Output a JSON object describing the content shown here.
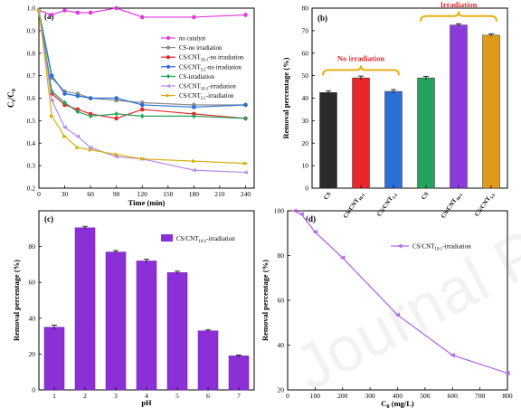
{
  "watermark": "Journal Pre-proof",
  "colors": {
    "no_catalyst": "#e03ad9",
    "cs": "#8c8c8c",
    "cnt10": "#e8262b",
    "cnt51": "#2a6fd6",
    "green": "#25a35c",
    "violet": "#b48be8",
    "gold": "#d9ae12",
    "bar_cs": "#2b2b2b",
    "bar_cnt10": "#e8262b",
    "bar_cnt51": "#2a6fd6",
    "bar_cs_irr": "#25a35c",
    "bar_cnt10_irr": "#8b3bdc",
    "bar_cnt51_irr": "#e09a1a",
    "brace": "#e8b012",
    "annot": "#e8262b",
    "purple": "#8b2fd6",
    "purple_line": "#b36ae8"
  },
  "chart_data": [
    {
      "panel": "(a)",
      "type": "line",
      "xlabel": "Time (min)",
      "ylabel": "Ct/C0",
      "xlim": [
        0,
        250
      ],
      "ylim": [
        0.2,
        1.0
      ],
      "xticks": [
        "0",
        "30",
        "60",
        "90",
        "120",
        "150",
        "180",
        "210",
        "240"
      ],
      "yticks": [
        "0.2",
        "0.3",
        "0.4",
        "0.5",
        "0.6",
        "0.7",
        "0.8",
        "0.9",
        "1.0"
      ],
      "legend": "top-right",
      "series": [
        {
          "name": "no catalyst",
          "color_key": "no_catalyst",
          "marker": "circle",
          "x": [
            0,
            15,
            30,
            45,
            60,
            90,
            120,
            180,
            240
          ],
          "y": [
            0.99,
            0.97,
            0.99,
            0.98,
            0.98,
            1.0,
            0.96,
            0.96,
            0.97
          ]
        },
        {
          "name": "CS-no irradiation",
          "color_key": "cs",
          "marker": "circle",
          "x": [
            0,
            15,
            30,
            45,
            60,
            90,
            120,
            180,
            240
          ],
          "y": [
            0.99,
            0.69,
            0.63,
            0.62,
            0.6,
            0.59,
            0.58,
            0.57,
            0.57
          ]
        },
        {
          "name": "CS/CNT10:1-no irradiation",
          "color_key": "cnt10",
          "marker": "circle",
          "x": [
            0,
            15,
            30,
            45,
            60,
            90,
            120,
            180,
            240
          ],
          "y": [
            0.99,
            0.62,
            0.57,
            0.55,
            0.53,
            0.51,
            0.55,
            0.53,
            0.51
          ]
        },
        {
          "name": "CS/CNT5:1-no irradiation",
          "color_key": "cnt51",
          "marker": "circle",
          "x": [
            0,
            15,
            30,
            45,
            60,
            90,
            120,
            180,
            240
          ],
          "y": [
            0.99,
            0.7,
            0.62,
            0.61,
            0.6,
            0.6,
            0.57,
            0.56,
            0.57
          ]
        },
        {
          "name": "CS-irradiation",
          "color_key": "green",
          "marker": "diamond",
          "x": [
            0,
            15,
            30,
            45,
            60,
            90,
            120,
            180,
            240
          ],
          "y": [
            0.99,
            0.63,
            0.58,
            0.54,
            0.52,
            0.53,
            0.52,
            0.52,
            0.51
          ]
        },
        {
          "name": "CS/CNT10:1-irradiation",
          "color_key": "violet",
          "marker": "triangle-left",
          "x": [
            0,
            15,
            30,
            45,
            60,
            90,
            120,
            180,
            240
          ],
          "y": [
            0.99,
            0.59,
            0.47,
            0.43,
            0.38,
            0.34,
            0.33,
            0.28,
            0.27
          ]
        },
        {
          "name": "CS/CNT5:1-irradiation",
          "color_key": "gold",
          "marker": "triangle-right",
          "x": [
            0,
            15,
            30,
            45,
            60,
            90,
            120,
            180,
            240
          ],
          "y": [
            0.99,
            0.52,
            0.43,
            0.38,
            0.37,
            0.35,
            0.33,
            0.32,
            0.31
          ]
        }
      ]
    },
    {
      "panel": "(b)",
      "type": "bar",
      "ylabel": "Removal percentage (%)",
      "ylim": [
        0,
        80
      ],
      "yticks": [
        "0",
        "10",
        "20",
        "30",
        "40",
        "50",
        "60",
        "70",
        "80"
      ],
      "categories": [
        "CS",
        "CS/CNT10:1",
        "CS/CNT5:1",
        "CS",
        "CS/CNT10:1",
        "CS/CNT5:1"
      ],
      "values": [
        42.5,
        49,
        43,
        49,
        72.5,
        68
      ],
      "errors": [
        0.7,
        0.8,
        0.8,
        0.7,
        0.6,
        0.6
      ],
      "color_keys": [
        "bar_cs",
        "bar_cnt10",
        "bar_cnt51",
        "bar_cs_irr",
        "bar_cnt10_irr",
        "bar_cnt51_irr"
      ],
      "annotations": [
        "No irradiation",
        "Irradiation"
      ]
    },
    {
      "panel": "(c)",
      "type": "bar",
      "xlabel": "pH",
      "ylabel": "Removal percentage (%)",
      "ylim": [
        0,
        100
      ],
      "yticks": [
        "0",
        "20",
        "40",
        "60",
        "80"
      ],
      "categories": [
        "1",
        "2",
        "3",
        "4",
        "5",
        "6",
        "7"
      ],
      "values": [
        35,
        90.5,
        77,
        72,
        65.5,
        33,
        19
      ],
      "errors": [
        1.2,
        0.8,
        0.8,
        1.0,
        0.8,
        0.5,
        0.5
      ],
      "legend": "top-right",
      "series_name": "CS/CNT10:1-irradiation"
    },
    {
      "panel": "(d)",
      "type": "line",
      "xlabel": "C0 (mg/L)",
      "ylabel": "Removal percentage (%)",
      "xlim": [
        0,
        800
      ],
      "ylim": [
        20,
        100
      ],
      "xticks": [
        "0",
        "100",
        "200",
        "300",
        "400",
        "500",
        "600",
        "700",
        "800"
      ],
      "yticks": [
        "20",
        "40",
        "60",
        "80",
        "100"
      ],
      "legend": "top-right",
      "series": [
        {
          "name": "CS/CNT10:1-irradiation",
          "x": [
            25,
            50,
            100,
            200,
            400,
            600,
            800
          ],
          "y": [
            100,
            98.5,
            90.5,
            79,
            53.5,
            35.5,
            27.5
          ]
        }
      ]
    }
  ]
}
